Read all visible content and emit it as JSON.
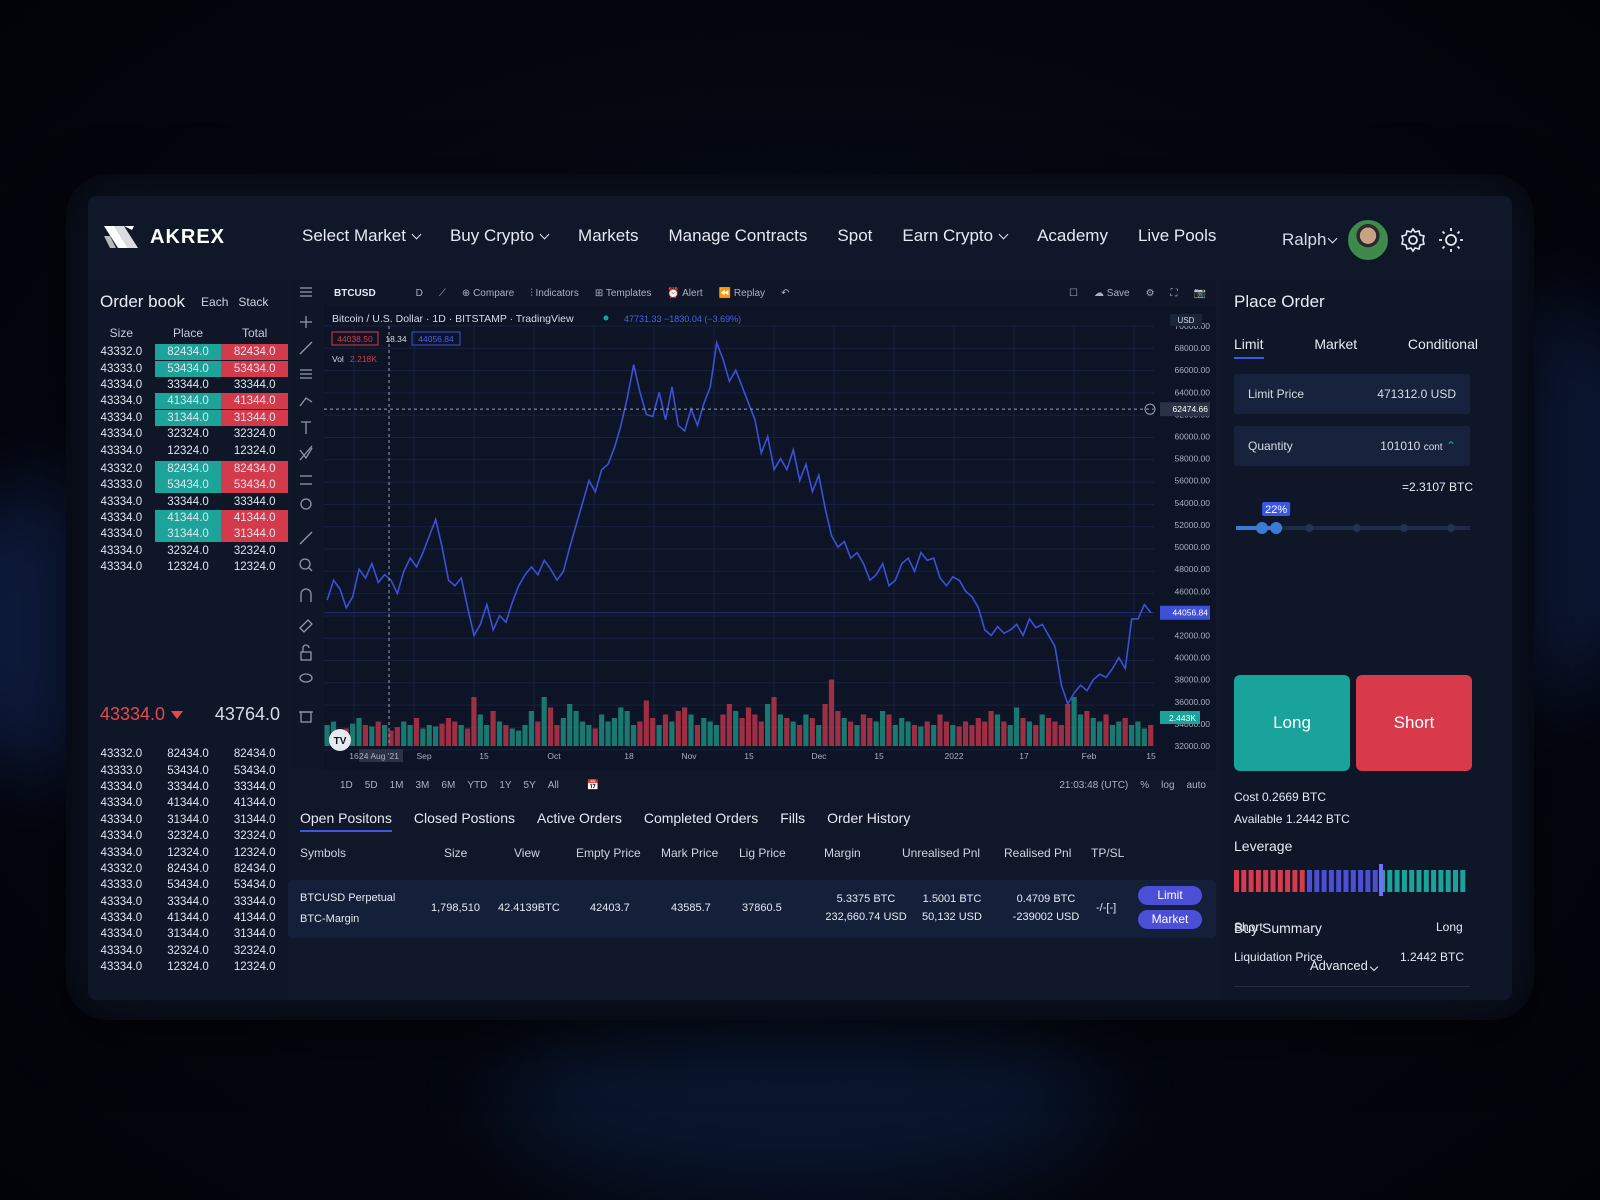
{
  "brand": {
    "name": "AKREX"
  },
  "nav": {
    "items": [
      {
        "label": "Select Market",
        "dropdown": true
      },
      {
        "label": "Buy Crypto",
        "dropdown": true
      },
      {
        "label": "Markets",
        "dropdown": false
      },
      {
        "label": "Manage Contracts",
        "dropdown": false
      },
      {
        "label": "Spot",
        "dropdown": false
      },
      {
        "label": "Earn Crypto",
        "dropdown": true
      },
      {
        "label": "Academy",
        "dropdown": false
      },
      {
        "label": "Live Pools",
        "dropdown": false
      }
    ],
    "user": "Ralph"
  },
  "orderbook": {
    "title": "Order book",
    "tabs": [
      "Each",
      "Stack"
    ],
    "columns": [
      "Size",
      "Place",
      "Total"
    ],
    "top_rows": [
      [
        "43332.0",
        "82434.0",
        "82434.0",
        "hl"
      ],
      [
        "43333.0",
        "53434.0",
        "53434.0",
        "hl"
      ],
      [
        "43334.0",
        "33344.0",
        "33344.0",
        ""
      ],
      [
        "43334.0",
        "41344.0",
        "41344.0",
        "hl"
      ],
      [
        "43334.0",
        "31344.0",
        "31344.0",
        "hl"
      ],
      [
        "43334.0",
        "32324.0",
        "32324.0",
        ""
      ],
      [
        "43334.0",
        "12324.0",
        "12324.0",
        ""
      ],
      [
        "43332.0",
        "82434.0",
        "82434.0",
        "hl"
      ],
      [
        "43333.0",
        "53434.0",
        "53434.0",
        "hl"
      ],
      [
        "43334.0",
        "33344.0",
        "33344.0",
        ""
      ],
      [
        "43334.0",
        "41344.0",
        "41344.0",
        "hl"
      ],
      [
        "43334.0",
        "31344.0",
        "31344.0",
        "hl"
      ],
      [
        "43334.0",
        "32324.0",
        "32324.0",
        ""
      ],
      [
        "43334.0",
        "12324.0",
        "12324.0",
        ""
      ]
    ],
    "mid_price": "43334.0",
    "mid_value": "43764.0",
    "bottom_rows": [
      [
        "43332.0",
        "82434.0",
        "82434.0"
      ],
      [
        "43333.0",
        "53434.0",
        "53434.0"
      ],
      [
        "43334.0",
        "33344.0",
        "33344.0"
      ],
      [
        "43334.0",
        "41344.0",
        "41344.0"
      ],
      [
        "43334.0",
        "31344.0",
        "31344.0"
      ],
      [
        "43334.0",
        "32324.0",
        "32324.0"
      ],
      [
        "43334.0",
        "12324.0",
        "12324.0"
      ],
      [
        "43332.0",
        "82434.0",
        "82434.0"
      ],
      [
        "43333.0",
        "53434.0",
        "53434.0"
      ],
      [
        "43334.0",
        "33344.0",
        "33344.0"
      ],
      [
        "43334.0",
        "41344.0",
        "41344.0"
      ],
      [
        "43334.0",
        "31344.0",
        "31344.0"
      ],
      [
        "43334.0",
        "32324.0",
        "32324.0"
      ],
      [
        "43334.0",
        "12324.0",
        "12324.0"
      ]
    ]
  },
  "chart_toolbar": {
    "symbol": "BTCUSD",
    "interval": "D",
    "compare": "Compare",
    "indicators": "Indicators",
    "templates": "Templates",
    "alert": "Alert",
    "replay": "Replay",
    "save": "Save"
  },
  "chart_legend": {
    "title": "Bitcoin / U.S. Dollar · 1D · BITSTAMP · TradingView",
    "change": "47731.33 −1830.04 (−3.69%)",
    "bid": "44038.50",
    "spread": "18.34",
    "ask": "44056.84",
    "vol_label": "Vol",
    "vol_value": "2.218K",
    "currency": "USD"
  },
  "chart_data": {
    "type": "line",
    "x_ticks": [
      "16",
      "24 Aug '21",
      "Sep",
      "15",
      "Oct",
      "18",
      "Nov",
      "15",
      "Dec",
      "15",
      "2022",
      "17",
      "Feb",
      "15"
    ],
    "y_ticks": [
      "70000.00",
      "68000.00",
      "66000.00",
      "64000.00",
      "62000.00",
      "60000.00",
      "58000.00",
      "56000.00",
      "54000.00",
      "52000.00",
      "50000.00",
      "48000.00",
      "46000.00",
      "44000.00",
      "42000.00",
      "40000.00",
      "38000.00",
      "36000.00",
      "34000.00",
      "32000.00"
    ],
    "ylim": [
      32000,
      70000
    ],
    "crosshair_price": "62474.66",
    "last_price": "44056.84",
    "volume_tag": "2.443K",
    "price": [
      45200,
      47000,
      46200,
      44500,
      45500,
      48000,
      47200,
      48500,
      46800,
      47500,
      47000,
      45800,
      47800,
      49000,
      48200,
      49500,
      51000,
      52500,
      50000,
      47000,
      46500,
      47200,
      44500,
      42000,
      43000,
      44800,
      42500,
      43800,
      43200,
      45000,
      46500,
      47500,
      48200,
      47500,
      48800,
      48000,
      47000,
      47800,
      50000,
      52000,
      54000,
      56000,
      55000,
      57000,
      57500,
      59000,
      61000,
      63500,
      66500,
      64000,
      62000,
      61800,
      64000,
      61500,
      64500,
      61000,
      60500,
      62500,
      61000,
      63000,
      64500,
      68500,
      67000,
      65000,
      66000,
      64500,
      63000,
      61500,
      58500,
      60000,
      57000,
      58000,
      57000,
      58800,
      56000,
      57500,
      55000,
      56500,
      53500,
      51000,
      50000,
      50500,
      49000,
      49500,
      48500,
      47000,
      47500,
      48500,
      46500,
      47000,
      48500,
      49000,
      47800,
      49500,
      48800,
      49000,
      47200,
      46500,
      47300,
      47000,
      46000,
      45500,
      44500,
      42500,
      42000,
      42800,
      42200,
      42500,
      43000,
      42000,
      43500,
      42700,
      43000,
      42000,
      41000,
      37500,
      35800,
      36800,
      37500,
      37000,
      38000,
      38500,
      38200,
      39000,
      40000,
      39000,
      43500,
      43500,
      44800,
      44056
    ],
    "volume": [
      0.3,
      0.35,
      0.2,
      0.25,
      0.32,
      0.4,
      0.3,
      0.28,
      0.35,
      0.3,
      0.22,
      0.27,
      0.35,
      0.3,
      0.4,
      0.25,
      0.3,
      0.28,
      0.32,
      0.4,
      0.35,
      0.3,
      0.25,
      0.7,
      0.45,
      0.3,
      0.5,
      0.35,
      0.3,
      0.25,
      0.22,
      0.3,
      0.5,
      0.35,
      0.7,
      0.55,
      0.3,
      0.4,
      0.6,
      0.5,
      0.35,
      0.3,
      0.25,
      0.45,
      0.35,
      0.4,
      0.55,
      0.5,
      0.3,
      0.35,
      0.65,
      0.4,
      0.3,
      0.45,
      0.35,
      0.5,
      0.55,
      0.45,
      0.3,
      0.4,
      0.35,
      0.3,
      0.45,
      0.6,
      0.5,
      0.4,
      0.55,
      0.45,
      0.35,
      0.6,
      0.7,
      0.45,
      0.4,
      0.35,
      0.3,
      0.45,
      0.4,
      0.3,
      0.6,
      0.95,
      0.5,
      0.4,
      0.35,
      0.3,
      0.45,
      0.4,
      0.35,
      0.5,
      0.45,
      0.3,
      0.4,
      0.35,
      0.3,
      0.28,
      0.35,
      0.3,
      0.45,
      0.35,
      0.3,
      0.28,
      0.35,
      0.3,
      0.4,
      0.35,
      0.5,
      0.45,
      0.35,
      0.3,
      0.55,
      0.4,
      0.35,
      0.3,
      0.45,
      0.4,
      0.35,
      0.3,
      0.6,
      0.7,
      0.45,
      0.5,
      0.4,
      0.35,
      0.45,
      0.3,
      0.35,
      0.4,
      0.3,
      0.35,
      0.25,
      0.3
    ]
  },
  "chart_bottom": {
    "ranges": [
      "1D",
      "5D",
      "1M",
      "3M",
      "6M",
      "YTD",
      "1Y",
      "5Y",
      "All"
    ],
    "time": "21:03:48 (UTC)",
    "pct": "%",
    "log": "log",
    "auto": "auto"
  },
  "positions": {
    "tabs": [
      "Open Positons",
      "Closed Postions",
      "Active Orders",
      "Completed Orders",
      "Fills",
      "Order History"
    ],
    "columns": [
      "Symbols",
      "Size",
      "View",
      "Empty Price",
      "Mark Price",
      "Lig Price",
      "Margin",
      "Unrealised Pnl",
      "Realised Pnl",
      "TP/SL"
    ],
    "row": {
      "symbol": "BTCUSD Perpetual",
      "margin_type": "BTC-Margin",
      "size": "1,798,510",
      "view": "42.4139BTC",
      "empty_price": "42403.7",
      "mark_price": "43585.7",
      "lig_price": "37860.5",
      "margin_btc": "5.3375 BTC",
      "margin_usd": "232,660.74 USD",
      "unrealised_btc": "1.5001 BTC",
      "unrealised_usd": "50,132 USD",
      "realised_btc": "0.4709 BTC",
      "realised_usd": "-239002 USD",
      "tpsl": "-/-[-]",
      "limit_btn": "Limit",
      "market_btn": "Market"
    }
  },
  "place_order": {
    "title": "Place Order",
    "tabs": [
      "Limit",
      "Market",
      "Conditional"
    ],
    "limit_price_label": "Limit Price",
    "limit_price_value": "471312.0 USD",
    "quantity_label": "Quantity",
    "quantity_value": "101010",
    "quantity_unit": "cont",
    "btc_equiv": "=2.3107 BTC",
    "slider_pct": "22%",
    "slider_fraction": 0.22,
    "long": "Long",
    "short": "Short",
    "cost": "Cost 0.2669 BTC",
    "available": "Available 1.2442 BTC",
    "leverage_label": "Leverage",
    "leverage_short": "Short",
    "leverage_long": "Long",
    "advanced": "Advanced",
    "buy_summary": "Buy Summary",
    "liq_label": "Liquidation Price",
    "liq_value": "1.2442 BTC"
  },
  "colors": {
    "green": "#1aa39b",
    "red": "#d83a4c",
    "accent": "#3a57e8",
    "line": "#3f4fd8"
  }
}
